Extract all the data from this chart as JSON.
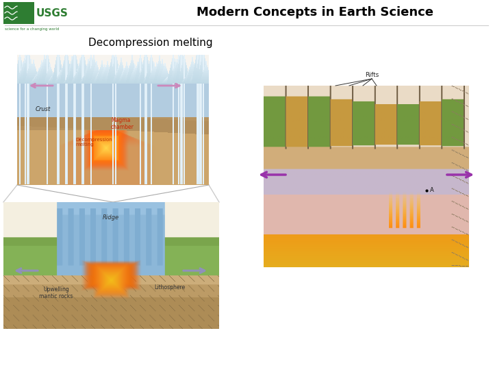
{
  "title": "Modern Concepts in Earth Science",
  "subtitle": "Decompression melting",
  "bg_color": "#ffffff",
  "title_color": "#000000",
  "subtitle_color": "#000000",
  "title_fontsize": 13,
  "subtitle_fontsize": 11,
  "usgs_green": "#2e7d32",
  "usgs_tagline": "science for a changing world"
}
